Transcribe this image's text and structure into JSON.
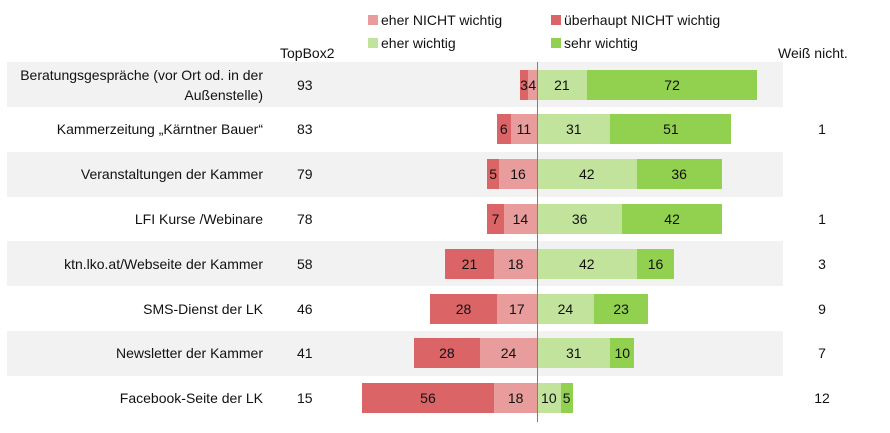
{
  "chart_data": {
    "type": "bar",
    "orientation": "horizontal-diverging",
    "legend": [
      {
        "name": "eher NICHT wichtig",
        "color": "#e89c9c"
      },
      {
        "name": "überhaupt NICHT wichtig",
        "color": "#da6466"
      },
      {
        "name": "eher wichtig",
        "color": "#c2e39b"
      },
      {
        "name": "sehr wichtig",
        "color": "#92d050"
      }
    ],
    "column_headers": {
      "topbox": "TopBox2",
      "weiss_nicht": "Weiß nicht."
    },
    "categories": [
      "Beratungsgespräche (vor Ort od. in der Außenstelle)",
      "Kammerzeitung „Kärntner Bauer“",
      "Veranstaltungen der Kammer",
      "LFI Kurse /Webinare",
      "ktn.lko.at/Webseite der Kammer",
      "SMS-Dienst der LK",
      "Newsletter der Kammer",
      "Facebook-Seite der LK"
    ],
    "topbox2": [
      "93",
      "83",
      "79",
      "78",
      "58",
      "46",
      "41",
      "15"
    ],
    "weiss_nicht": [
      "",
      "1",
      "",
      "1",
      "3",
      "9",
      "7",
      "12"
    ],
    "series": [
      {
        "name": "überhaupt NICHT wichtig",
        "values": [
          3,
          6,
          5,
          7,
          21,
          28,
          28,
          56
        ]
      },
      {
        "name": "eher NICHT wichtig",
        "values": [
          4,
          11,
          16,
          14,
          18,
          17,
          24,
          18
        ]
      },
      {
        "name": "eher wichtig",
        "values": [
          21,
          31,
          42,
          36,
          42,
          24,
          31,
          10
        ]
      },
      {
        "name": "sehr wichtig",
        "values": [
          72,
          51,
          36,
          42,
          16,
          23,
          10,
          5
        ]
      }
    ]
  }
}
